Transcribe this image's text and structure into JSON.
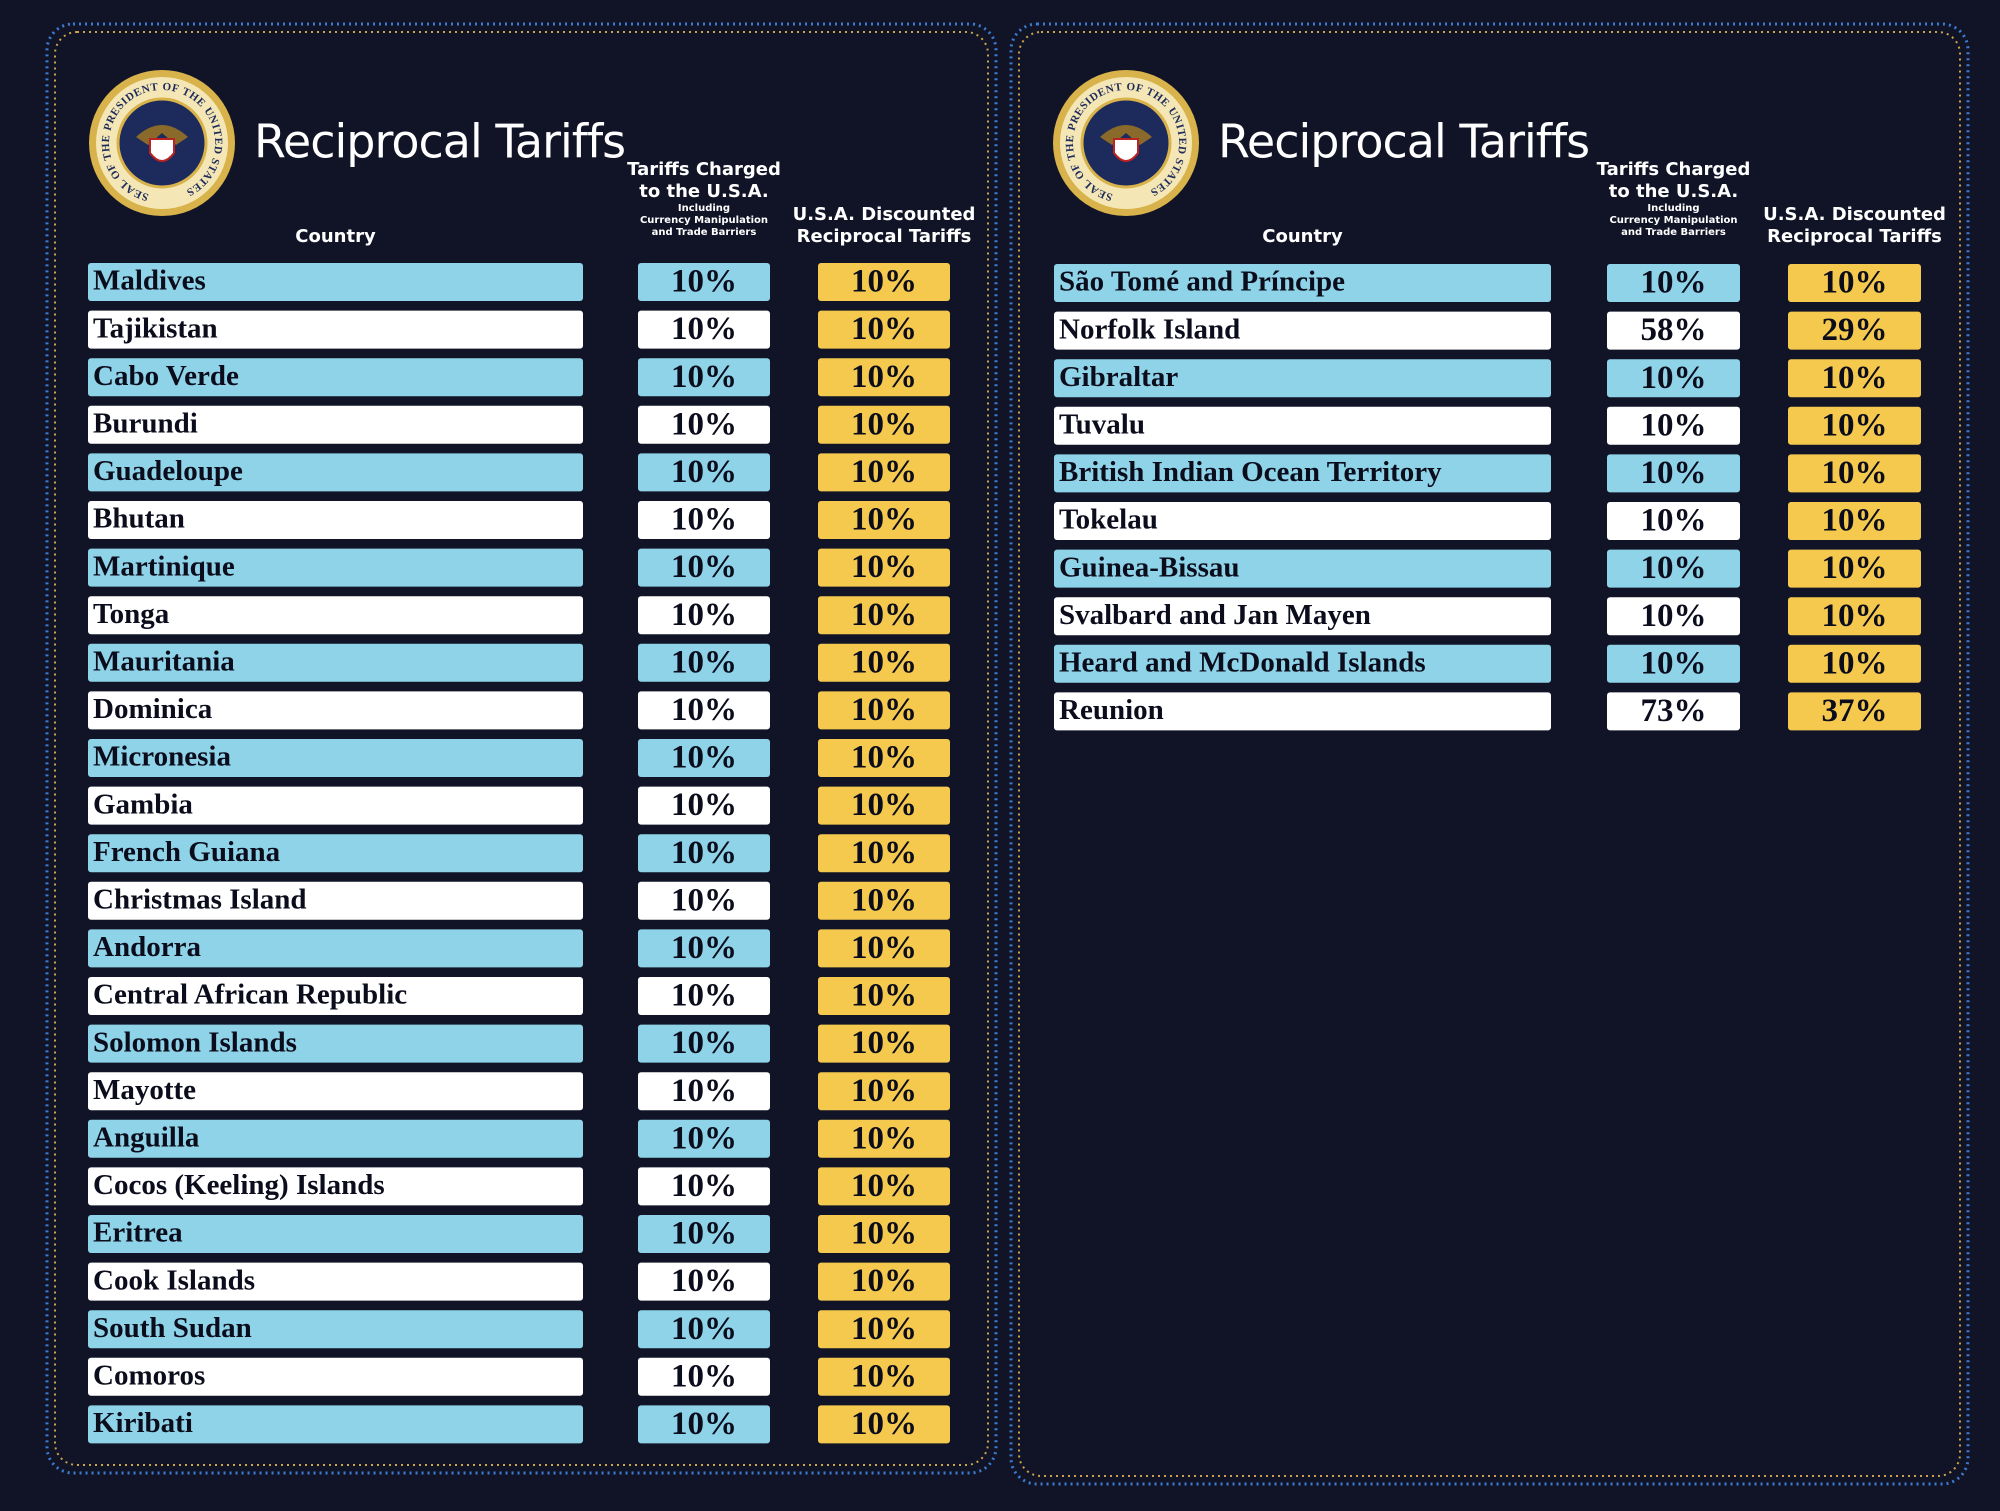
{
  "seal_text": "SEAL OF THE PRESIDENT OF THE UNITED STATES",
  "panels": [
    {
      "title": "Reciprocal Tariffs",
      "headers": {
        "country": "Country",
        "charged": [
          "Tariffs Charged",
          "to the U.S.A."
        ],
        "charged_note": [
          "Including",
          "Currency Manipulation",
          "and Trade Barriers"
        ],
        "discounted": [
          "U.S.A. Discounted",
          "Reciprocal Tariffs"
        ]
      },
      "rows": [
        {
          "country": "Maldives",
          "charged": "10%",
          "discounted": "10%"
        },
        {
          "country": "Tajikistan",
          "charged": "10%",
          "discounted": "10%"
        },
        {
          "country": "Cabo Verde",
          "charged": "10%",
          "discounted": "10%"
        },
        {
          "country": "Burundi",
          "charged": "10%",
          "discounted": "10%"
        },
        {
          "country": "Guadeloupe",
          "charged": "10%",
          "discounted": "10%"
        },
        {
          "country": "Bhutan",
          "charged": "10%",
          "discounted": "10%"
        },
        {
          "country": "Martinique",
          "charged": "10%",
          "discounted": "10%"
        },
        {
          "country": "Tonga",
          "charged": "10%",
          "discounted": "10%"
        },
        {
          "country": "Mauritania",
          "charged": "10%",
          "discounted": "10%"
        },
        {
          "country": "Dominica",
          "charged": "10%",
          "discounted": "10%"
        },
        {
          "country": "Micronesia",
          "charged": "10%",
          "discounted": "10%"
        },
        {
          "country": "Gambia",
          "charged": "10%",
          "discounted": "10%"
        },
        {
          "country": "French Guiana",
          "charged": "10%",
          "discounted": "10%"
        },
        {
          "country": "Christmas Island",
          "charged": "10%",
          "discounted": "10%"
        },
        {
          "country": "Andorra",
          "charged": "10%",
          "discounted": "10%"
        },
        {
          "country": "Central African Republic",
          "charged": "10%",
          "discounted": "10%"
        },
        {
          "country": "Solomon Islands",
          "charged": "10%",
          "discounted": "10%"
        },
        {
          "country": "Mayotte",
          "charged": "10%",
          "discounted": "10%"
        },
        {
          "country": "Anguilla",
          "charged": "10%",
          "discounted": "10%"
        },
        {
          "country": "Cocos (Keeling) Islands",
          "charged": "10%",
          "discounted": "10%"
        },
        {
          "country": "Eritrea",
          "charged": "10%",
          "discounted": "10%"
        },
        {
          "country": "Cook Islands",
          "charged": "10%",
          "discounted": "10%"
        },
        {
          "country": "South Sudan",
          "charged": "10%",
          "discounted": "10%"
        },
        {
          "country": "Comoros",
          "charged": "10%",
          "discounted": "10%"
        },
        {
          "country": "Kiribati",
          "charged": "10%",
          "discounted": "10%"
        }
      ]
    },
    {
      "title": "Reciprocal Tariffs",
      "headers": {
        "country": "Country",
        "charged": [
          "Tariffs Charged",
          "to the U.S.A."
        ],
        "charged_note": [
          "Including",
          "Currency Manipulation",
          "and Trade Barriers"
        ],
        "discounted": [
          "U.S.A. Discounted",
          "Reciprocal Tariffs"
        ]
      },
      "rows": [
        {
          "country": "São Tomé and Príncipe",
          "charged": "10%",
          "discounted": "10%"
        },
        {
          "country": "Norfolk Island",
          "charged": "58%",
          "discounted": "29%"
        },
        {
          "country": "Gibraltar",
          "charged": "10%",
          "discounted": "10%"
        },
        {
          "country": "Tuvalu",
          "charged": "10%",
          "discounted": "10%"
        },
        {
          "country": "British Indian Ocean Territory",
          "charged": "10%",
          "discounted": "10%"
        },
        {
          "country": "Tokelau",
          "charged": "10%",
          "discounted": "10%"
        },
        {
          "country": "Guinea-Bissau",
          "charged": "10%",
          "discounted": "10%"
        },
        {
          "country": "Svalbard and Jan Mayen",
          "charged": "10%",
          "discounted": "10%"
        },
        {
          "country": "Heard and McDonald Islands",
          "charged": "10%",
          "discounted": "10%"
        },
        {
          "country": "Reunion",
          "charged": "73%",
          "discounted": "37%"
        }
      ]
    }
  ]
}
